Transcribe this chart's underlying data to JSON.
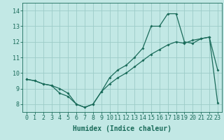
{
  "title": "",
  "xlabel": "Humidex (Indice chaleur)",
  "background_color": "#c2e8e5",
  "grid_color": "#9cccc8",
  "line_color": "#1a6b5a",
  "xlim": [
    -0.5,
    23.5
  ],
  "ylim": [
    7.5,
    14.5
  ],
  "xticks": [
    0,
    1,
    2,
    3,
    4,
    5,
    6,
    7,
    8,
    9,
    10,
    11,
    12,
    13,
    14,
    15,
    16,
    17,
    18,
    19,
    20,
    21,
    22,
    23
  ],
  "yticks": [
    8,
    9,
    10,
    11,
    12,
    13,
    14
  ],
  "line1_x": [
    0,
    1,
    2,
    3,
    4,
    5,
    6,
    7,
    8,
    9,
    10,
    11,
    12,
    13,
    14,
    15,
    16,
    17,
    18,
    19,
    20,
    21,
    22,
    23
  ],
  "line1_y": [
    9.6,
    9.5,
    9.3,
    9.2,
    9.0,
    8.7,
    8.0,
    7.8,
    8.0,
    8.8,
    9.7,
    10.2,
    10.5,
    11.0,
    11.6,
    13.0,
    13.0,
    13.8,
    13.8,
    12.0,
    11.9,
    12.2,
    12.3,
    10.2
  ],
  "line2_x": [
    0,
    1,
    2,
    3,
    4,
    5,
    6,
    7,
    8,
    9,
    10,
    11,
    12,
    13,
    14,
    15,
    16,
    17,
    18,
    19,
    20,
    21,
    22,
    23
  ],
  "line2_y": [
    9.6,
    9.5,
    9.3,
    9.2,
    8.7,
    8.5,
    8.0,
    7.8,
    8.0,
    8.8,
    9.3,
    9.7,
    10.0,
    10.4,
    10.8,
    11.2,
    11.5,
    11.8,
    12.0,
    11.9,
    12.1,
    12.2,
    12.3,
    8.1
  ],
  "tick_fontsize": 6,
  "xlabel_fontsize": 7
}
